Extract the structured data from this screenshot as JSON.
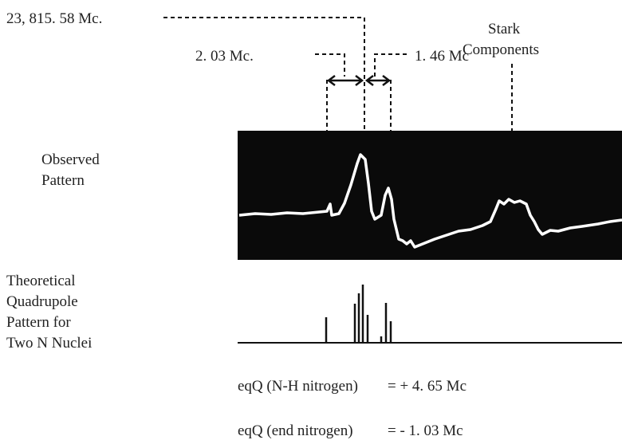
{
  "labels": {
    "center_frequency": "23, 815. 58 Mc.",
    "left_splitting": "2. 03 Mc.",
    "right_splitting": "1. 46 Mc",
    "stark": [
      "Stark",
      "Components"
    ],
    "observed": [
      "Observed",
      "Pattern"
    ],
    "theoretical": [
      "Theoretical",
      "Quadrupole",
      "Pattern for",
      "Two N Nuclei"
    ]
  },
  "equations": [
    {
      "label": "eqQ (N-H nitrogen)",
      "value": "= + 4. 65 Mc"
    },
    {
      "label": "eqQ (end nitrogen)",
      "value": "= - 1. 03 Mc"
    }
  ]
}
